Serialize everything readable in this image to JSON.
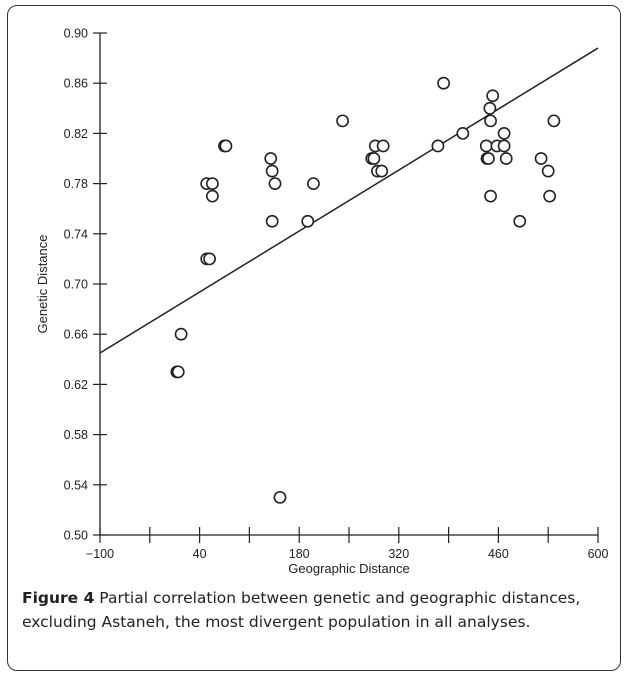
{
  "caption": {
    "label": "Figure 4",
    "text": " Partial correlation between genetic and geographic distances, excluding Astaneh, the most divergent population in all analyses."
  },
  "chart_data": {
    "type": "scatter",
    "xlabel": "Geographic Distance",
    "ylabel": "Genetic Distance",
    "xlim": [
      -100,
      600
    ],
    "ylim": [
      0.5,
      0.9
    ],
    "xticks": [
      -100,
      40,
      180,
      320,
      460,
      600
    ],
    "xtick_labels": [
      "−100",
      "40",
      "180",
      "320",
      "460",
      "600"
    ],
    "xminor_ticks": [
      -30,
      110,
      250,
      390,
      530
    ],
    "yticks": [
      0.5,
      0.54,
      0.58,
      0.62,
      0.66,
      0.7,
      0.74,
      0.78,
      0.82,
      0.86,
      0.9
    ],
    "ytick_labels": [
      "0.50",
      "0.54",
      "0.58",
      "0.62",
      "0.66",
      "0.70",
      "0.74",
      "0.78",
      "0.82",
      "0.86",
      "0.90"
    ],
    "trendline": {
      "x": [
        -100,
        600
      ],
      "y": [
        0.645,
        0.888
      ]
    },
    "points": [
      {
        "x": 8,
        "y": 0.63
      },
      {
        "x": 10,
        "y": 0.63
      },
      {
        "x": 14,
        "y": 0.66
      },
      {
        "x": 50,
        "y": 0.78
      },
      {
        "x": 58,
        "y": 0.78
      },
      {
        "x": 58,
        "y": 0.77
      },
      {
        "x": 50,
        "y": 0.72
      },
      {
        "x": 54,
        "y": 0.72
      },
      {
        "x": 75,
        "y": 0.81
      },
      {
        "x": 77,
        "y": 0.81
      },
      {
        "x": 140,
        "y": 0.8
      },
      {
        "x": 142,
        "y": 0.79
      },
      {
        "x": 146,
        "y": 0.78
      },
      {
        "x": 142,
        "y": 0.75
      },
      {
        "x": 153,
        "y": 0.53
      },
      {
        "x": 192,
        "y": 0.75
      },
      {
        "x": 200,
        "y": 0.78
      },
      {
        "x": 241,
        "y": 0.83
      },
      {
        "x": 282,
        "y": 0.8
      },
      {
        "x": 285,
        "y": 0.8
      },
      {
        "x": 287,
        "y": 0.81
      },
      {
        "x": 290,
        "y": 0.79
      },
      {
        "x": 296,
        "y": 0.79
      },
      {
        "x": 298,
        "y": 0.81
      },
      {
        "x": 375,
        "y": 0.81
      },
      {
        "x": 383,
        "y": 0.86
      },
      {
        "x": 410,
        "y": 0.82
      },
      {
        "x": 443,
        "y": 0.81
      },
      {
        "x": 444,
        "y": 0.8
      },
      {
        "x": 446,
        "y": 0.8
      },
      {
        "x": 448,
        "y": 0.84
      },
      {
        "x": 449,
        "y": 0.83
      },
      {
        "x": 452,
        "y": 0.85
      },
      {
        "x": 449,
        "y": 0.77
      },
      {
        "x": 458,
        "y": 0.81
      },
      {
        "x": 468,
        "y": 0.82
      },
      {
        "x": 468,
        "y": 0.81
      },
      {
        "x": 471,
        "y": 0.8
      },
      {
        "x": 490,
        "y": 0.75
      },
      {
        "x": 520,
        "y": 0.8
      },
      {
        "x": 530,
        "y": 0.79
      },
      {
        "x": 532,
        "y": 0.77
      },
      {
        "x": 538,
        "y": 0.83
      }
    ]
  }
}
